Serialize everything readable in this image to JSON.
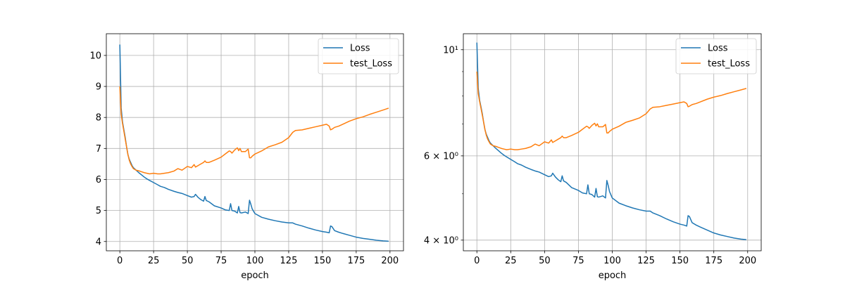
{
  "chart_data": [
    {
      "type": "line",
      "title": "",
      "xlabel": "epoch",
      "ylabel": "",
      "xlim": [
        -10,
        210
      ],
      "ylim": [
        3.7,
        10.7
      ],
      "y_scale": "linear",
      "grid": true,
      "legend_position": "top-right",
      "x_ticks": [
        0,
        25,
        50,
        75,
        100,
        125,
        150,
        175,
        200
      ],
      "x_tick_labels": [
        "0",
        "25",
        "50",
        "75",
        "100",
        "125",
        "150",
        "175",
        "200"
      ],
      "y_ticks": [
        4,
        5,
        6,
        7,
        8,
        9,
        10
      ],
      "y_tick_labels": [
        "4",
        "5",
        "6",
        "7",
        "8",
        "9",
        "10"
      ],
      "y_minor_ticks": [],
      "series": [
        {
          "name": "Loss",
          "color": "#1f77b4",
          "x": [
            0,
            1,
            2,
            3,
            4,
            5,
            6,
            7,
            8,
            9,
            10,
            12,
            14,
            16,
            18,
            20,
            22,
            25,
            28,
            30,
            33,
            36,
            40,
            43,
            46,
            50,
            53,
            55,
            56,
            58,
            60,
            62,
            63,
            64,
            66,
            70,
            75,
            78,
            81,
            82,
            83,
            85,
            87,
            88,
            89,
            90,
            93,
            95,
            96,
            97,
            98,
            100,
            105,
            110,
            115,
            120,
            125,
            128,
            130,
            135,
            140,
            145,
            150,
            153,
            155,
            156,
            157,
            159,
            162,
            165,
            170,
            175,
            180,
            185,
            190,
            195,
            199
          ],
          "y": [
            10.35,
            8.3,
            7.85,
            7.6,
            7.35,
            7.05,
            6.8,
            6.65,
            6.55,
            6.45,
            6.38,
            6.3,
            6.22,
            6.15,
            6.08,
            6.02,
            5.97,
            5.9,
            5.83,
            5.78,
            5.74,
            5.68,
            5.62,
            5.58,
            5.55,
            5.48,
            5.43,
            5.45,
            5.52,
            5.42,
            5.35,
            5.3,
            5.45,
            5.32,
            5.28,
            5.15,
            5.08,
            5.02,
            5.0,
            5.22,
            5.0,
            4.98,
            4.92,
            5.13,
            4.93,
            4.92,
            4.95,
            4.9,
            5.33,
            5.2,
            5.05,
            4.9,
            4.78,
            4.72,
            4.67,
            4.63,
            4.6,
            4.6,
            4.56,
            4.5,
            4.43,
            4.37,
            4.32,
            4.3,
            4.28,
            4.5,
            4.48,
            4.35,
            4.3,
            4.26,
            4.2,
            4.14,
            4.1,
            4.07,
            4.04,
            4.02,
            4.01
          ]
        },
        {
          "name": "test_Loss",
          "color": "#ff7f0e",
          "x": [
            0,
            1,
            2,
            3,
            4,
            5,
            6,
            7,
            8,
            9,
            10,
            12,
            14,
            16,
            18,
            20,
            22,
            25,
            28,
            30,
            33,
            36,
            40,
            43,
            46,
            50,
            53,
            55,
            56,
            58,
            60,
            62,
            63,
            64,
            66,
            70,
            75,
            78,
            81,
            82,
            83,
            85,
            87,
            88,
            89,
            90,
            93,
            95,
            96,
            97,
            98,
            100,
            105,
            110,
            115,
            120,
            125,
            128,
            130,
            135,
            140,
            145,
            150,
            153,
            155,
            156,
            157,
            159,
            162,
            165,
            170,
            175,
            180,
            185,
            190,
            195,
            199
          ],
          "y": [
            9.0,
            8.1,
            7.8,
            7.55,
            7.3,
            7.05,
            6.8,
            6.62,
            6.5,
            6.42,
            6.35,
            6.3,
            6.28,
            6.25,
            6.22,
            6.2,
            6.18,
            6.2,
            6.18,
            6.18,
            6.2,
            6.22,
            6.27,
            6.35,
            6.3,
            6.42,
            6.38,
            6.48,
            6.4,
            6.45,
            6.5,
            6.55,
            6.6,
            6.55,
            6.55,
            6.62,
            6.72,
            6.82,
            6.92,
            6.9,
            6.85,
            6.95,
            7.02,
            6.93,
            7.0,
            6.9,
            6.9,
            6.98,
            6.7,
            6.7,
            6.75,
            6.82,
            6.92,
            7.05,
            7.12,
            7.2,
            7.35,
            7.52,
            7.58,
            7.6,
            7.65,
            7.7,
            7.75,
            7.78,
            7.72,
            7.6,
            7.62,
            7.68,
            7.72,
            7.78,
            7.88,
            7.96,
            8.02,
            8.1,
            8.17,
            8.24,
            8.3
          ]
        }
      ]
    },
    {
      "type": "line",
      "title": "",
      "xlabel": "epoch",
      "ylabel": "",
      "xlim": [
        -10,
        210
      ],
      "ylim": [
        3.8,
        10.8
      ],
      "y_scale": "log",
      "grid": true,
      "legend_position": "top-right",
      "x_ticks": [
        0,
        25,
        50,
        75,
        100,
        125,
        150,
        175,
        200
      ],
      "x_tick_labels": [
        "0",
        "25",
        "50",
        "75",
        "100",
        "125",
        "150",
        "175",
        "200"
      ],
      "y_ticks": [
        4,
        6,
        10
      ],
      "y_tick_labels": [
        "4 × 10⁰",
        "6 × 10⁰",
        "10¹"
      ],
      "y_minor_ticks": [
        5,
        7,
        8,
        9
      ],
      "series": [
        {
          "name": "Loss",
          "color": "#1f77b4",
          "x": [
            0,
            1,
            2,
            3,
            4,
            5,
            6,
            7,
            8,
            9,
            10,
            12,
            14,
            16,
            18,
            20,
            22,
            25,
            28,
            30,
            33,
            36,
            40,
            43,
            46,
            50,
            53,
            55,
            56,
            58,
            60,
            62,
            63,
            64,
            66,
            70,
            75,
            78,
            81,
            82,
            83,
            85,
            87,
            88,
            89,
            90,
            93,
            95,
            96,
            97,
            98,
            100,
            105,
            110,
            115,
            120,
            125,
            128,
            130,
            135,
            140,
            145,
            150,
            153,
            155,
            156,
            157,
            159,
            162,
            165,
            170,
            175,
            180,
            185,
            190,
            195,
            199
          ],
          "y": [
            10.35,
            8.3,
            7.85,
            7.6,
            7.35,
            7.05,
            6.8,
            6.65,
            6.55,
            6.45,
            6.38,
            6.3,
            6.22,
            6.15,
            6.08,
            6.02,
            5.97,
            5.9,
            5.83,
            5.78,
            5.74,
            5.68,
            5.62,
            5.58,
            5.55,
            5.48,
            5.43,
            5.45,
            5.52,
            5.42,
            5.35,
            5.3,
            5.45,
            5.32,
            5.28,
            5.15,
            5.08,
            5.02,
            5.0,
            5.22,
            5.0,
            4.98,
            4.92,
            5.13,
            4.93,
            4.92,
            4.95,
            4.9,
            5.33,
            5.2,
            5.05,
            4.9,
            4.78,
            4.72,
            4.67,
            4.63,
            4.6,
            4.6,
            4.56,
            4.5,
            4.43,
            4.37,
            4.32,
            4.3,
            4.28,
            4.5,
            4.48,
            4.35,
            4.3,
            4.26,
            4.2,
            4.14,
            4.1,
            4.07,
            4.04,
            4.02,
            4.01
          ]
        },
        {
          "name": "test_Loss",
          "color": "#ff7f0e",
          "x": [
            0,
            1,
            2,
            3,
            4,
            5,
            6,
            7,
            8,
            9,
            10,
            12,
            14,
            16,
            18,
            20,
            22,
            25,
            28,
            30,
            33,
            36,
            40,
            43,
            46,
            50,
            53,
            55,
            56,
            58,
            60,
            62,
            63,
            64,
            66,
            70,
            75,
            78,
            81,
            82,
            83,
            85,
            87,
            88,
            89,
            90,
            93,
            95,
            96,
            97,
            98,
            100,
            105,
            110,
            115,
            120,
            125,
            128,
            130,
            135,
            140,
            145,
            150,
            153,
            155,
            156,
            157,
            159,
            162,
            165,
            170,
            175,
            180,
            185,
            190,
            195,
            199
          ],
          "y": [
            9.0,
            8.1,
            7.8,
            7.55,
            7.3,
            7.05,
            6.8,
            6.62,
            6.5,
            6.42,
            6.35,
            6.3,
            6.28,
            6.25,
            6.22,
            6.2,
            6.18,
            6.2,
            6.18,
            6.18,
            6.2,
            6.22,
            6.27,
            6.35,
            6.3,
            6.42,
            6.38,
            6.48,
            6.4,
            6.45,
            6.5,
            6.55,
            6.6,
            6.55,
            6.55,
            6.62,
            6.72,
            6.82,
            6.92,
            6.9,
            6.85,
            6.95,
            7.02,
            6.93,
            7.0,
            6.9,
            6.9,
            6.98,
            6.7,
            6.7,
            6.75,
            6.82,
            6.92,
            7.05,
            7.12,
            7.2,
            7.35,
            7.52,
            7.58,
            7.6,
            7.65,
            7.7,
            7.75,
            7.78,
            7.72,
            7.6,
            7.62,
            7.68,
            7.72,
            7.78,
            7.88,
            7.96,
            8.02,
            8.1,
            8.17,
            8.24,
            8.3
          ]
        }
      ]
    }
  ]
}
